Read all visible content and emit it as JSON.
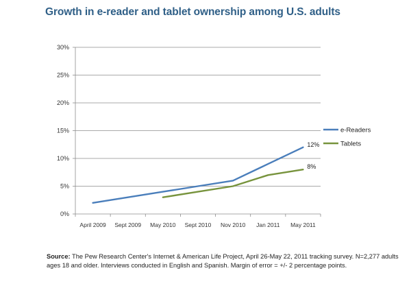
{
  "chart_data": {
    "type": "line",
    "title": "Growth in e-reader and tablet ownership among U.S. adults",
    "xlabel": "",
    "ylabel": "",
    "categories": [
      "April 2009",
      "Sept 2009",
      "May 2010",
      "Sept 2010",
      "Nov 2010",
      "Jan 2011",
      "May 2011"
    ],
    "ylim": [
      0,
      30
    ],
    "yticks": [
      "0%",
      "5%",
      "10%",
      "15%",
      "20%",
      "25%",
      "30%"
    ],
    "ytick_values": [
      0,
      5,
      10,
      15,
      20,
      25,
      30
    ],
    "grid": true,
    "legend_position": "right",
    "series": [
      {
        "name": "e-Readers",
        "color": "#4a7ebb",
        "values": [
          2,
          3,
          4,
          5,
          6,
          9,
          12
        ],
        "end_label": "12%"
      },
      {
        "name": "Tablets",
        "color": "#77933c",
        "values": [
          null,
          null,
          3,
          4,
          5,
          7,
          8
        ],
        "end_label": "8%"
      }
    ]
  },
  "source": {
    "label": "Source:",
    "text": "The Pew Research Center's Internet & American Life Project, April 26-May 22, 2011 tracking survey. N=2,277 adults ages 18 and older. Interviews conducted in English and Spanish. Margin of error = +/- 2 percentage points."
  }
}
